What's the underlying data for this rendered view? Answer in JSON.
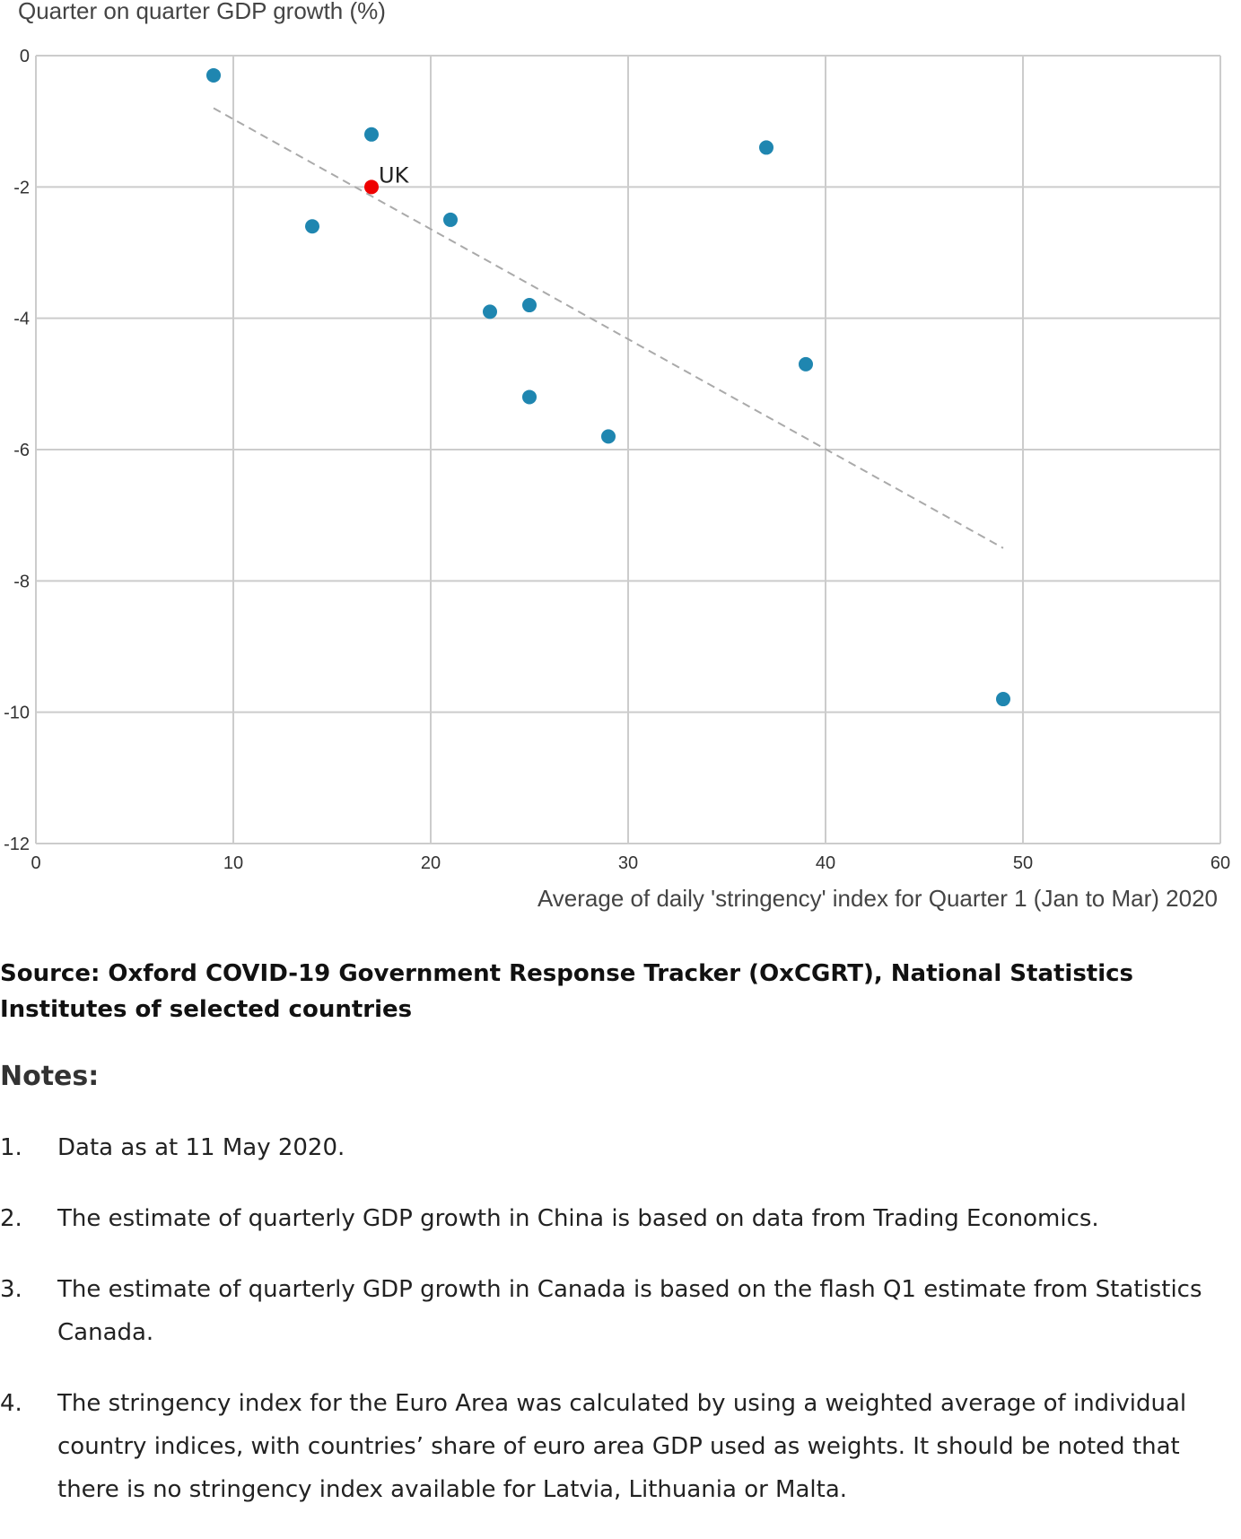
{
  "chart_data": {
    "type": "scatter",
    "ylabel": "Quarter on quarter GDP growth (%)",
    "xlabel": "Average of daily 'stringency' index for Quarter 1 (Jan to Mar) 2020",
    "xlim": [
      0,
      60
    ],
    "ylim": [
      -12,
      0
    ],
    "x_ticks": [
      "0",
      "10",
      "20",
      "30",
      "40",
      "50",
      "60"
    ],
    "y_ticks": [
      "0",
      "-2",
      "-4",
      "-6",
      "-8",
      "-10",
      "-12"
    ],
    "grid": true,
    "points": [
      {
        "x": 9,
        "y": -0.3
      },
      {
        "x": 14,
        "y": -2.6
      },
      {
        "x": 17,
        "y": -1.2
      },
      {
        "x": 21,
        "y": -2.5
      },
      {
        "x": 23,
        "y": -3.9
      },
      {
        "x": 25,
        "y": -3.8
      },
      {
        "x": 25,
        "y": -5.2
      },
      {
        "x": 29,
        "y": -5.8
      },
      {
        "x": 37,
        "y": -1.4
      },
      {
        "x": 39,
        "y": -4.7
      },
      {
        "x": 49,
        "y": -9.8
      }
    ],
    "highlight": {
      "label": "UK",
      "x": 17,
      "y": -2.0
    },
    "trendline": {
      "x": [
        9,
        49
      ],
      "y": [
        -0.8,
        -7.5
      ]
    },
    "colors": {
      "point": "#1f86b0",
      "highlight": "#ee0000",
      "trendline": "#aaaaaa",
      "grid": "#cccccc"
    }
  },
  "source": "Source: Oxford COVID-19 Government Response Tracker (OxCGRT), National Statistics Institutes of selected countries",
  "notes": {
    "heading": "Notes:",
    "items": [
      {
        "num": "1.",
        "text": "Data as at 11 May 2020."
      },
      {
        "num": "2.",
        "text": "The estimate of quarterly GDP growth in China is based on data from Trading Economics."
      },
      {
        "num": "3.",
        "text": "The estimate of quarterly GDP growth in Canada is based on the flash Q1 estimate from Statistics Canada."
      },
      {
        "num": "4.",
        "text": "The stringency index for the Euro Area was calculated by using a weighted average of individual country indices, with countries’ share of euro area GDP used as weights. It should be noted that there is no stringency index available for Latvia, Lithuania or Malta."
      }
    ]
  }
}
